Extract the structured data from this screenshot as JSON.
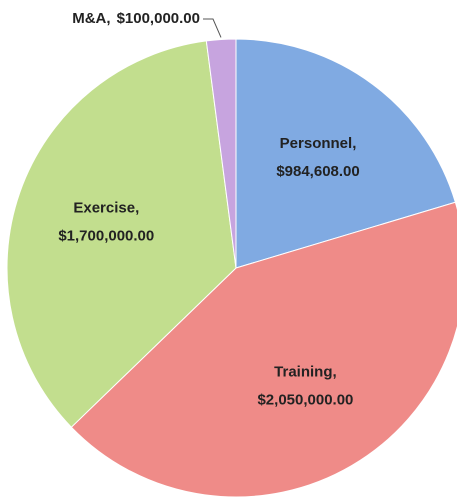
{
  "chart_data": {
    "type": "pie",
    "categories": [
      "Personnel,",
      "Training,",
      "Exercise,",
      "M&A,"
    ],
    "values": [
      984608,
      2050000,
      1700000,
      100000
    ],
    "value_labels": [
      "$984,608.00",
      "$2,050,000.00",
      "$1,700,000.00",
      "$100,000.00"
    ],
    "colors": [
      "#80aae2",
      "#ef8b88",
      "#c2de8e",
      "#c7a4df"
    ]
  }
}
